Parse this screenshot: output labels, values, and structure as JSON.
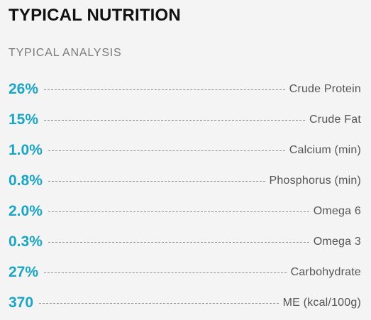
{
  "header": {
    "title": "TYPICAL NUTRITION",
    "subtitle": "TYPICAL ANALYSIS"
  },
  "accent_color": "#1aa6c4",
  "nutrients": [
    {
      "value": "26%",
      "label": "Crude Protein"
    },
    {
      "value": "15%",
      "label": "Crude Fat"
    },
    {
      "value": "1.0%",
      "label": "Calcium (min)"
    },
    {
      "value": "0.8%",
      "label": "Phosphorus (min)"
    },
    {
      "value": "2.0%",
      "label": "Omega 6"
    },
    {
      "value": "0.3%",
      "label": "Omega 3"
    },
    {
      "value": "27%",
      "label": "Carbohydrate"
    },
    {
      "value": "370",
      "label": "ME (kcal/100g)"
    }
  ]
}
